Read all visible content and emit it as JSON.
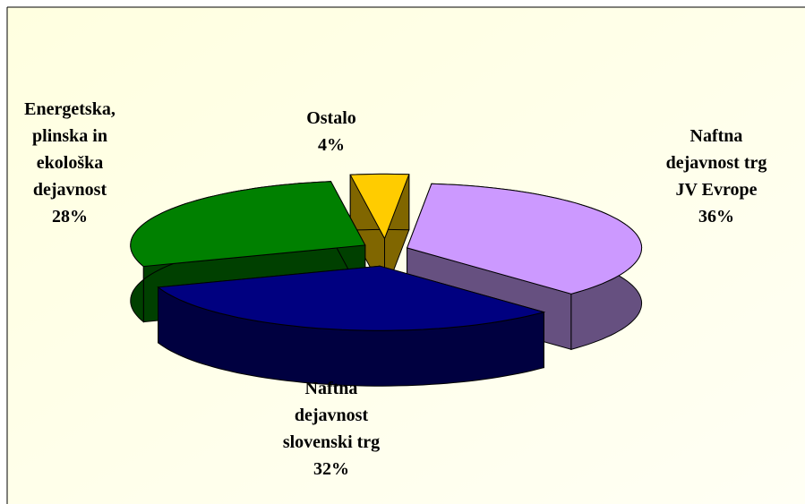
{
  "chart_data": {
    "type": "pie3d",
    "categories": [
      "Naftna\ndejavnost trg\nJV Evrope",
      "Naftna\ndejavnost\nslovenski trg",
      "Energetska,\nplinska in\nekološka\ndejavnost",
      "Ostalo"
    ],
    "values": [
      36,
      32,
      28,
      4
    ],
    "value_labels": [
      "36%",
      "32%",
      "28%",
      "4%"
    ],
    "colors": [
      "#cc99ff",
      "#000080",
      "#008000",
      "#ffcc00"
    ],
    "side_colors": [
      "#665080",
      "#000040",
      "#004000",
      "#806600"
    ]
  }
}
